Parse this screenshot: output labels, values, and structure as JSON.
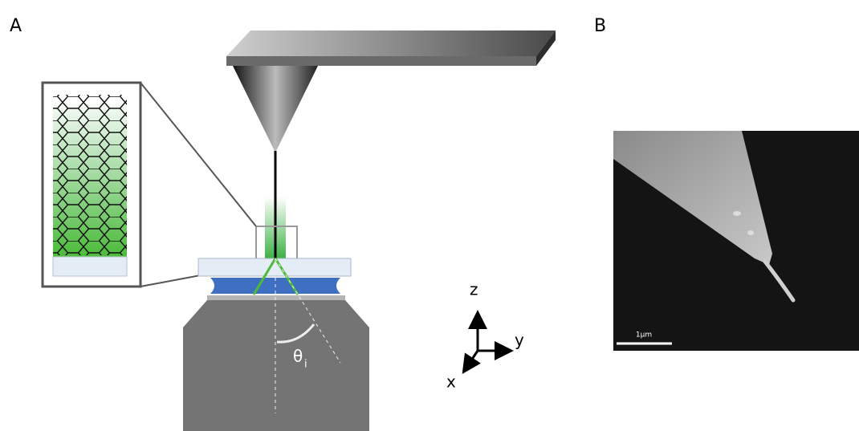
{
  "panel_a": {
    "label": "A",
    "angle_symbol": "θ",
    "angle_subscript": "i",
    "axes": {
      "z": "z",
      "y": "y",
      "x": "x"
    }
  },
  "panel_b": {
    "label": "B",
    "scale_bar": "1μm"
  }
}
